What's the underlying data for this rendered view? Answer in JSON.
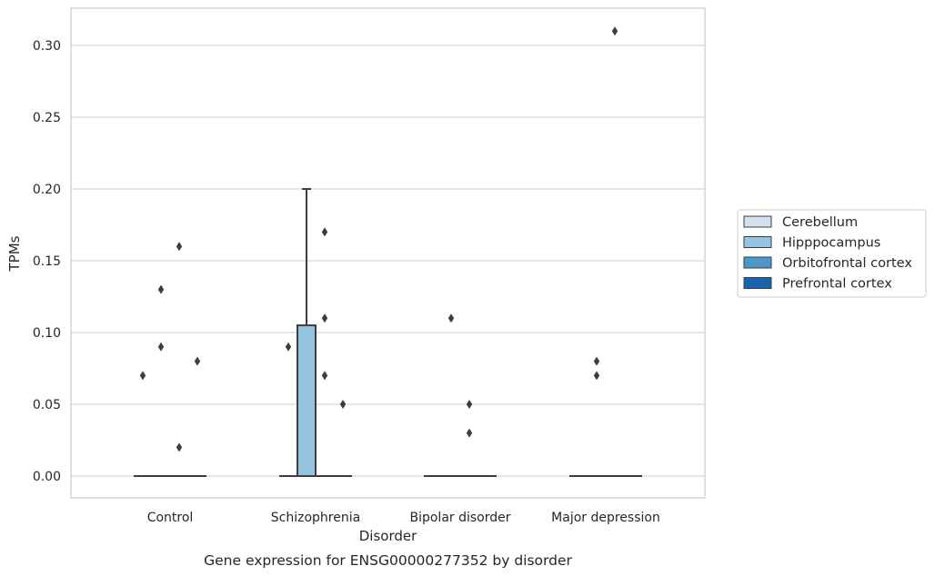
{
  "chart_data": {
    "type": "box",
    "caption": "Gene expression for ENSG00000277352 by disorder",
    "xlabel": "Disorder",
    "ylabel": "TPMs",
    "ylim": [
      -0.015,
      0.325
    ],
    "yticks": [
      0.0,
      0.05,
      0.1,
      0.15,
      0.2,
      0.25,
      0.3
    ],
    "ytick_labels": [
      "0.00",
      "0.05",
      "0.10",
      "0.15",
      "0.20",
      "0.25",
      "0.30"
    ],
    "grid": true,
    "legend_position": "right",
    "categories": [
      "Control",
      "Schizophrenia",
      "Bipolar disorder",
      "Major depression"
    ],
    "series": [
      {
        "name": "Cerebellum",
        "color": "#d0e1f2",
        "boxes": [
          {
            "q1": 0,
            "median": 0,
            "q3": 0,
            "whisker_low": 0,
            "whisker_high": 0,
            "outliers": [
              0.07
            ]
          },
          {
            "q1": 0,
            "median": 0,
            "q3": 0,
            "whisker_low": 0,
            "whisker_high": 0,
            "outliers": [
              0.09
            ]
          },
          {
            "q1": 0,
            "median": 0,
            "q3": 0,
            "whisker_low": 0,
            "whisker_high": 0,
            "outliers": []
          },
          {
            "q1": 0,
            "median": 0,
            "q3": 0,
            "whisker_low": 0,
            "whisker_high": 0,
            "outliers": []
          }
        ]
      },
      {
        "name": "Hipppocampus",
        "color": "#94c4df",
        "boxes": [
          {
            "q1": 0,
            "median": 0,
            "q3": 0,
            "whisker_low": 0,
            "whisker_high": 0,
            "outliers": [
              0.09,
              0.13
            ]
          },
          {
            "q1": 0,
            "median": 0,
            "q3": 0.105,
            "whisker_low": 0,
            "whisker_high": 0.2,
            "outliers": []
          },
          {
            "q1": 0,
            "median": 0,
            "q3": 0,
            "whisker_low": 0,
            "whisker_high": 0,
            "outliers": [
              0.11
            ]
          },
          {
            "q1": 0,
            "median": 0,
            "q3": 0,
            "whisker_low": 0,
            "whisker_high": 0,
            "outliers": [
              0.07,
              0.08
            ]
          }
        ]
      },
      {
        "name": "Orbitofrontal cortex",
        "color": "#4a98c9",
        "boxes": [
          {
            "q1": 0,
            "median": 0,
            "q3": 0,
            "whisker_low": 0,
            "whisker_high": 0,
            "outliers": [
              0.02,
              0.16
            ]
          },
          {
            "q1": 0,
            "median": 0,
            "q3": 0,
            "whisker_low": 0,
            "whisker_high": 0,
            "outliers": [
              0.07,
              0.11,
              0.17
            ]
          },
          {
            "q1": 0,
            "median": 0,
            "q3": 0,
            "whisker_low": 0,
            "whisker_high": 0,
            "outliers": [
              0.03,
              0.05
            ]
          },
          {
            "q1": 0,
            "median": 0,
            "q3": 0,
            "whisker_low": 0,
            "whisker_high": 0,
            "outliers": [
              0.31
            ]
          }
        ]
      },
      {
        "name": "Prefrontal cortex",
        "color": "#1764ab",
        "boxes": [
          {
            "q1": 0,
            "median": 0,
            "q3": 0,
            "whisker_low": 0,
            "whisker_high": 0,
            "outliers": [
              0.08
            ]
          },
          {
            "q1": 0,
            "median": 0,
            "q3": 0,
            "whisker_low": 0,
            "whisker_high": 0,
            "outliers": [
              0.05
            ]
          },
          {
            "q1": 0,
            "median": 0,
            "q3": 0,
            "whisker_low": 0,
            "whisker_high": 0,
            "outliers": []
          },
          {
            "q1": 0,
            "median": 0,
            "q3": 0,
            "whisker_low": 0,
            "whisker_high": 0,
            "outliers": []
          }
        ]
      }
    ]
  }
}
